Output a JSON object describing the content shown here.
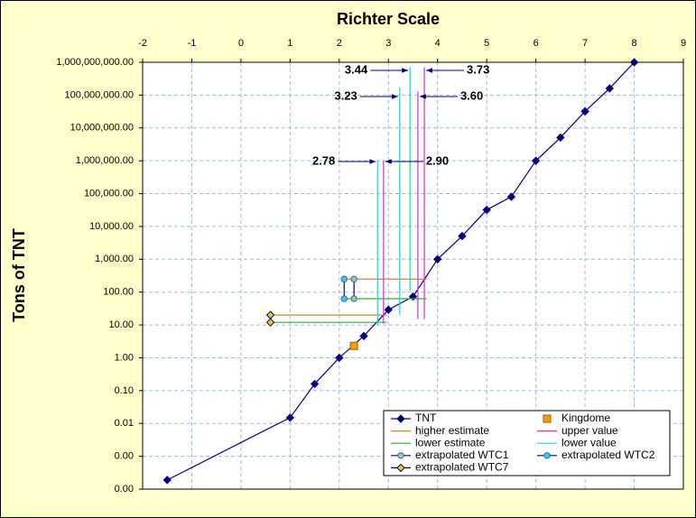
{
  "chart_data": {
    "type": "scatter",
    "title": "Richter Scale",
    "y_label": "Tons of TNT",
    "xlim": [
      -2,
      9
    ],
    "xticks": [
      -2,
      -1,
      0,
      1,
      2,
      3,
      4,
      5,
      6,
      7,
      8,
      9
    ],
    "ylim": [
      0.0001,
      1000000000
    ],
    "ylog": true,
    "yticks": [
      {
        "value": 0.0001,
        "label": "0.00"
      },
      {
        "value": 0.001,
        "label": "0.00"
      },
      {
        "value": 0.01,
        "label": "0.01"
      },
      {
        "value": 0.1,
        "label": "0.10"
      },
      {
        "value": 1,
        "label": "1.00"
      },
      {
        "value": 10,
        "label": "10.00"
      },
      {
        "value": 100,
        "label": "100.00"
      },
      {
        "value": 1000,
        "label": "1,000.00"
      },
      {
        "value": 10000,
        "label": "10,000.00"
      },
      {
        "value": 100000,
        "label": "100,000.00"
      },
      {
        "value": 1000000,
        "label": "1,000,000.00"
      },
      {
        "value": 10000000,
        "label": "10,000,000.00"
      },
      {
        "value": 100000000,
        "label": "100,000,000.00"
      },
      {
        "value": 1000000000,
        "label": "1,000,000,000.00"
      }
    ],
    "grid": true,
    "legend": "lower right",
    "series": [
      {
        "name": "TNT",
        "color": "#000080",
        "marker": "diamond",
        "line": true,
        "x": [
          -1.5,
          1.0,
          1.5,
          2.0,
          2.5,
          3.0,
          3.5,
          4.0,
          4.5,
          5.0,
          5.5,
          6.0,
          6.5,
          7.0,
          7.5,
          8.0
        ],
        "values": [
          0.00019,
          0.015,
          0.16,
          1,
          4.6,
          29,
          73,
          1000,
          5100,
          32000,
          80000,
          1000000,
          5100000,
          32000000,
          160000000,
          1000000000
        ]
      },
      {
        "name": "Kingdome",
        "color": "#FF9900",
        "marker": "square",
        "line": false,
        "x": [
          2.3
        ],
        "values": [
          2.3
        ]
      },
      {
        "name": "higher estimate",
        "color": "#CC8833",
        "marker": "none",
        "line": true,
        "x": [
          2.1,
          3.78,
          null,
          0.6,
          2.97
        ],
        "values": [
          250,
          250,
          null,
          20,
          20
        ]
      },
      {
        "name": "upper value",
        "color": "#CC33CC",
        "marker": "none",
        "line": true,
        "x": [
          3.73,
          3.73,
          null,
          3.6,
          3.6,
          null,
          2.9,
          2.9
        ],
        "values": [
          700000000,
          15,
          null,
          130000000,
          15,
          null,
          1000000,
          11
        ]
      },
      {
        "name": "lower estimate",
        "color": "#33AA33",
        "marker": "none",
        "line": true,
        "x": [
          2.1,
          3.78,
          null,
          0.6,
          2.97
        ],
        "values": [
          63,
          63,
          null,
          12,
          12
        ]
      },
      {
        "name": "lower value",
        "color": "#33CCCC",
        "marker": "none",
        "line": true,
        "x": [
          3.44,
          3.44,
          null,
          3.23,
          3.23,
          null,
          2.78,
          2.78
        ],
        "values": [
          700000000,
          110,
          null,
          170000000,
          20,
          null,
          1000000,
          10
        ]
      },
      {
        "name": "extrapolated WTC1",
        "color": "#99CC99",
        "marker": "circle",
        "line": true,
        "x": [
          2.3,
          2.3
        ],
        "values": [
          250,
          63
        ]
      },
      {
        "name": "extrapolated WTC2",
        "color": "#33CCFF",
        "marker": "circle",
        "line": true,
        "x": [
          2.1,
          2.1
        ],
        "values": [
          250,
          63
        ]
      },
      {
        "name": "extrapolated WTC7",
        "color": "#FFCC00",
        "marker": "diamond",
        "line": true,
        "x": [
          0.6,
          0.6
        ],
        "values": [
          20,
          12
        ]
      }
    ],
    "annotations": [
      {
        "value": 3.44,
        "label": "3.44"
      },
      {
        "value": 3.73,
        "label": "3.73"
      },
      {
        "value": 3.23,
        "label": "3.23"
      },
      {
        "value": 3.6,
        "label": "3.60"
      },
      {
        "value": 2.78,
        "label": "2.78"
      },
      {
        "value": 2.9,
        "label": "2.90"
      }
    ]
  }
}
